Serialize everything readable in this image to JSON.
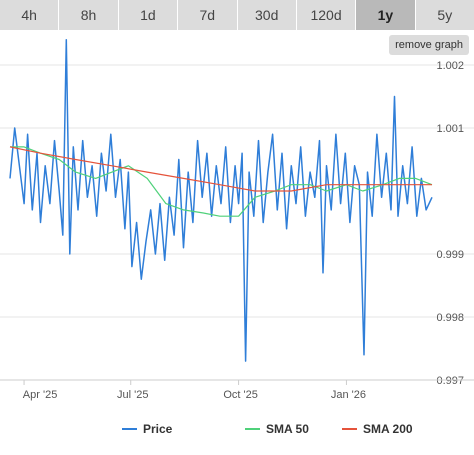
{
  "range_tabs": [
    {
      "label": "4h",
      "active": false
    },
    {
      "label": "8h",
      "active": false
    },
    {
      "label": "1d",
      "active": false
    },
    {
      "label": "7d",
      "active": false
    },
    {
      "label": "30d",
      "active": false
    },
    {
      "label": "120d",
      "active": false
    },
    {
      "label": "1y",
      "active": true
    },
    {
      "label": "5y",
      "active": false
    }
  ],
  "remove_graph_label": "remove graph",
  "colors": {
    "price": "#2f7ed8",
    "sma50": "#4fd17a",
    "sma200": "#e5533b",
    "grid": "#e6e6e6",
    "tab_bg": "#dcdcdc",
    "tab_active_bg": "#b9b9b9"
  },
  "chart_data": {
    "type": "line",
    "title": "",
    "xlabel": "",
    "ylabel": "",
    "x_start": "2025-03-20",
    "x_end": "2026-03-15",
    "ylim": [
      0.997,
      1.002
    ],
    "y_ticks": [
      {
        "value": 1.002,
        "label": "1.002"
      },
      {
        "value": 1.001,
        "label": "1.001"
      },
      {
        "value": 0.999,
        "label": "0.999"
      },
      {
        "value": 0.998,
        "label": "0.998"
      },
      {
        "value": 0.997,
        "label": "0.997"
      }
    ],
    "x_ticks": [
      {
        "date": "2025-04-01",
        "label": "Apr '25"
      },
      {
        "date": "2025-07-01",
        "label": "Jul '25"
      },
      {
        "date": "2025-10-01",
        "label": "Oct '25"
      },
      {
        "date": "2026-01-01",
        "label": "Jan '26"
      }
    ],
    "grid": "horizontal",
    "legend": "bottom",
    "series": [
      {
        "name": "Price",
        "color_key": "price",
        "points": [
          [
            "2025-03-20",
            1.0002
          ],
          [
            "2025-03-24",
            1.001
          ],
          [
            "2025-03-28",
            1.0004
          ],
          [
            "2025-04-01",
            0.9998
          ],
          [
            "2025-04-04",
            1.0009
          ],
          [
            "2025-04-08",
            0.9997
          ],
          [
            "2025-04-12",
            1.0006
          ],
          [
            "2025-04-15",
            0.9995
          ],
          [
            "2025-04-19",
            1.0004
          ],
          [
            "2025-04-23",
            0.9998
          ],
          [
            "2025-04-27",
            1.0008
          ],
          [
            "2025-05-01",
            1.0
          ],
          [
            "2025-05-04",
            0.9993
          ],
          [
            "2025-05-07",
            1.0024
          ],
          [
            "2025-05-10",
            0.999
          ],
          [
            "2025-05-13",
            1.0007
          ],
          [
            "2025-05-17",
            0.9997
          ],
          [
            "2025-05-21",
            1.0008
          ],
          [
            "2025-05-25",
            0.9999
          ],
          [
            "2025-05-29",
            1.0004
          ],
          [
            "2025-06-02",
            0.9996
          ],
          [
            "2025-06-06",
            1.0006
          ],
          [
            "2025-06-10",
            1.0
          ],
          [
            "2025-06-14",
            1.0009
          ],
          [
            "2025-06-18",
            0.9999
          ],
          [
            "2025-06-22",
            1.0005
          ],
          [
            "2025-06-26",
            0.9994
          ],
          [
            "2025-06-29",
            1.0003
          ],
          [
            "2025-07-02",
            0.9988
          ],
          [
            "2025-07-06",
            0.9995
          ],
          [
            "2025-07-10",
            0.9986
          ],
          [
            "2025-07-14",
            0.9992
          ],
          [
            "2025-07-18",
            0.9997
          ],
          [
            "2025-07-22",
            0.999
          ],
          [
            "2025-07-26",
            0.9998
          ],
          [
            "2025-07-30",
            0.9989
          ],
          [
            "2025-08-03",
            0.9999
          ],
          [
            "2025-08-07",
            0.9993
          ],
          [
            "2025-08-11",
            1.0005
          ],
          [
            "2025-08-15",
            0.9991
          ],
          [
            "2025-08-19",
            1.0003
          ],
          [
            "2025-08-23",
            0.9995
          ],
          [
            "2025-08-27",
            1.0008
          ],
          [
            "2025-08-31",
            0.9999
          ],
          [
            "2025-09-04",
            1.0006
          ],
          [
            "2025-09-08",
            0.9996
          ],
          [
            "2025-09-12",
            1.0004
          ],
          [
            "2025-09-16",
            0.9998
          ],
          [
            "2025-09-20",
            1.0007
          ],
          [
            "2025-09-24",
            0.9995
          ],
          [
            "2025-09-28",
            1.0004
          ],
          [
            "2025-10-01",
            0.9998
          ],
          [
            "2025-10-04",
            1.0006
          ],
          [
            "2025-10-07",
            0.9973
          ],
          [
            "2025-10-10",
            1.0003
          ],
          [
            "2025-10-14",
            0.9996
          ],
          [
            "2025-10-18",
            1.0008
          ],
          [
            "2025-10-22",
            0.9995
          ],
          [
            "2025-10-26",
            1.0003
          ],
          [
            "2025-10-30",
            1.0009
          ],
          [
            "2025-11-03",
            0.9997
          ],
          [
            "2025-11-07",
            1.0006
          ],
          [
            "2025-11-11",
            0.9994
          ],
          [
            "2025-11-15",
            1.0004
          ],
          [
            "2025-11-19",
            0.9998
          ],
          [
            "2025-11-23",
            1.0007
          ],
          [
            "2025-11-27",
            0.9996
          ],
          [
            "2025-12-01",
            1.0003
          ],
          [
            "2025-12-05",
            0.9999
          ],
          [
            "2025-12-09",
            1.0008
          ],
          [
            "2025-12-12",
            0.9987
          ],
          [
            "2025-12-15",
            1.0004
          ],
          [
            "2025-12-19",
            0.9997
          ],
          [
            "2025-12-23",
            1.0009
          ],
          [
            "2025-12-27",
            0.9998
          ],
          [
            "2025-12-31",
            1.0006
          ],
          [
            "2026-01-04",
            0.9995
          ],
          [
            "2026-01-08",
            1.0004
          ],
          [
            "2026-01-12",
            1.0001
          ],
          [
            "2026-01-16",
            0.9974
          ],
          [
            "2026-01-19",
            1.0003
          ],
          [
            "2026-01-23",
            0.9996
          ],
          [
            "2026-01-27",
            1.0009
          ],
          [
            "2026-01-31",
            0.9999
          ],
          [
            "2026-02-04",
            1.0006
          ],
          [
            "2026-02-08",
            0.9997
          ],
          [
            "2026-02-11",
            1.0015
          ],
          [
            "2026-02-14",
            0.9996
          ],
          [
            "2026-02-18",
            1.0004
          ],
          [
            "2026-02-22",
            0.9998
          ],
          [
            "2026-02-26",
            1.0007
          ],
          [
            "2026-03-02",
            0.9996
          ],
          [
            "2026-03-06",
            1.0002
          ],
          [
            "2026-03-10",
            0.9997
          ],
          [
            "2026-03-15",
            0.9999
          ]
        ]
      },
      {
        "name": "SMA 50",
        "color_key": "sma50",
        "points": [
          [
            "2025-03-20",
            1.0007
          ],
          [
            "2025-04-01",
            1.0007
          ],
          [
            "2025-04-15",
            1.0006
          ],
          [
            "2025-05-01",
            1.0005
          ],
          [
            "2025-05-15",
            1.0003
          ],
          [
            "2025-06-01",
            1.0002
          ],
          [
            "2025-06-15",
            1.0003
          ],
          [
            "2025-06-29",
            1.0004
          ],
          [
            "2025-07-15",
            1.0002
          ],
          [
            "2025-07-31",
            0.9998
          ],
          [
            "2025-08-15",
            0.9997
          ],
          [
            "2025-09-01",
            0.99965
          ],
          [
            "2025-09-15",
            0.9996
          ],
          [
            "2025-10-01",
            0.9996
          ],
          [
            "2025-10-15",
            0.9999
          ],
          [
            "2025-11-01",
            1.0
          ],
          [
            "2025-11-15",
            1.0001
          ],
          [
            "2025-12-01",
            1.0001
          ],
          [
            "2025-12-15",
            1.0
          ],
          [
            "2026-01-01",
            1.0001
          ],
          [
            "2026-01-15",
            1.0
          ],
          [
            "2026-02-01",
            1.0001
          ],
          [
            "2026-02-15",
            1.0002
          ],
          [
            "2026-03-01",
            1.0002
          ],
          [
            "2026-03-15",
            1.0001
          ]
        ]
      },
      {
        "name": "SMA 200",
        "color_key": "sma200",
        "points": [
          [
            "2025-03-20",
            1.0007
          ],
          [
            "2025-04-15",
            1.0006
          ],
          [
            "2025-05-15",
            1.0005
          ],
          [
            "2025-06-15",
            1.0004
          ],
          [
            "2025-07-15",
            1.0003
          ],
          [
            "2025-08-15",
            1.0002
          ],
          [
            "2025-09-15",
            1.0001
          ],
          [
            "2025-10-15",
            1.0
          ],
          [
            "2025-11-15",
            1.0
          ],
          [
            "2025-12-15",
            1.0001
          ],
          [
            "2026-01-15",
            1.0001
          ],
          [
            "2026-02-15",
            1.0001
          ],
          [
            "2026-03-15",
            1.0001
          ]
        ]
      }
    ]
  }
}
